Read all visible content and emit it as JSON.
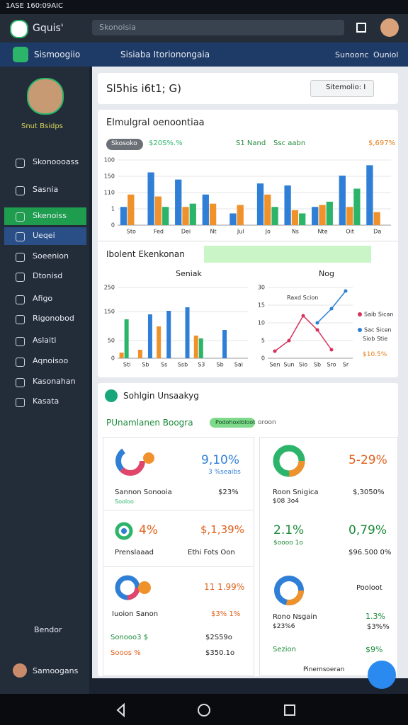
{
  "status": {
    "time": "1ASE 160:09AIC"
  },
  "topbar": {
    "app_name": "Gquis'",
    "search": "Skonoisia"
  },
  "navbar": {
    "brand": "Sismoogiio",
    "title": "Sisiaba Itorionongaia",
    "links": [
      "Sunoonc",
      "Ouniol"
    ]
  },
  "sidebar": {
    "profile": "Snut Bsidps",
    "menu": [
      "Skonoooass",
      "Sasnia",
      "Skenoiss",
      "Ueqei",
      "Soeenion",
      "Dtonisd",
      "Afigo",
      "Rigonobod",
      "Aslaiti",
      "Aqnoisoo",
      "Kasonahan",
      "Kasata"
    ],
    "footer": "Bendor",
    "user": "Samoogans"
  },
  "header": {
    "title": "Sl5his i6t1; G)",
    "dropdown": "Sitemolio: I"
  },
  "overview": {
    "title": "Elmulgral oenoontiaa",
    "chips": [
      "Skosoko",
      "$20S%.%",
      "S1 Nand",
      "Ssc aabn",
      "$,697%"
    ]
  },
  "insights": {
    "title": "Ibolent Ekenkonan",
    "left_title": "Seniak",
    "right_title": "Nog",
    "legend_top": "Raxd Scion",
    "legend_extra": [
      "Siob Stie",
      "$10.5%"
    ]
  },
  "summary": {
    "title": "Sohlgin Unsaakyg",
    "subtitle": "PUnamlanen Boogra",
    "chip": "Podohoxibloot",
    "chip_note": "oroon",
    "kpi0": {
      "value": "9,10%",
      "value_sub": "3 %seaibs",
      "label": "Sannon Sonooia",
      "amount": "$23%",
      "note": "Sooloo"
    },
    "kpi1": {
      "value": "5-29%",
      "label": "Roon Snigica",
      "amount": "$,3050%",
      "note": "$08 3o4"
    },
    "kpi2": {
      "value": "4%",
      "value2": "$,1,39%",
      "label": "Prenslaaad",
      "amount": "Ethi Fots Oon"
    },
    "kpi3": {
      "value": "2.1%",
      "value2": "0,79%",
      "label": "$oooo 1o",
      "amount": "$96.500 0%"
    },
    "kpi4": {
      "value": "11 1.99%",
      "label": "Iuoion Sanon",
      "amount": "$3% 1%",
      "row1": [
        "Sonooo3 $",
        "$2S59o"
      ],
      "row2": [
        "Sooos %",
        "$350.1o"
      ]
    },
    "kpi5": {
      "title": "Pooloot",
      "label": "Rono Nsgain",
      "amount": "1.3%",
      "note": "$23%6",
      "amount2": "$3%%",
      "label2": "Sezion",
      "amount3": "$9%",
      "footer": "Pinemsoeran"
    }
  },
  "chart_data": [
    {
      "type": "bar",
      "categories": [
        "Sto",
        "Fed",
        "Dei",
        "Nt",
        "Jul",
        "Jo",
        "Ns",
        "Nte",
        "Oit",
        "Da"
      ],
      "series": [
        {
          "color": "#2f7fd6",
          "values": [
            28,
            81,
            70,
            47,
            18,
            64,
            61,
            28,
            76,
            92
          ]
        },
        {
          "color": "#f0922b",
          "values": [
            47,
            44,
            28,
            33,
            31,
            47,
            23,
            31,
            28,
            20
          ]
        },
        {
          "color": "#2cb56a",
          "values": [
            null,
            28,
            33,
            null,
            null,
            28,
            18,
            36,
            56,
            null
          ]
        }
      ],
      "ylim": [
        0,
        100
      ],
      "yticks": [
        0,
        {
          "value": 25,
          "label": "1"
        },
        {
          "value": 50,
          "label": "110"
        },
        {
          "value": 75,
          "label": "150"
        },
        100
      ],
      "grid": true
    },
    {
      "type": "bar",
      "categories": [
        "Sti",
        "Sb",
        "Ss",
        "Ssb",
        "S3",
        "Sb",
        "Sai"
      ],
      "series": [
        {
          "color": "#f0922b",
          "values": [
            8,
            12,
            45,
            null,
            32,
            null,
            null
          ]
        },
        {
          "color": "#2cb56a",
          "values": [
            55,
            null,
            null,
            null,
            28,
            null,
            null
          ]
        },
        {
          "color": "#2f7fd6",
          "values": [
            null,
            62,
            67,
            72,
            null,
            40,
            null
          ]
        }
      ],
      "ylim": [
        0,
        100
      ],
      "yticks": [
        0,
        {
          "value": 25,
          "label": "50"
        },
        {
          "value": 66,
          "label": "150"
        },
        {
          "value": 100,
          "label": "250"
        }
      ],
      "grid": true
    },
    {
      "type": "line",
      "categories": [
        "Sen",
        "Sun",
        "Sio",
        "Sb",
        "Sro",
        "Sr"
      ],
      "series": [
        {
          "name": "Saib Sican",
          "color": "#d6315b",
          "values": [
            10,
            25,
            60,
            40,
            12,
            null
          ]
        },
        {
          "name": "Sac Sicen",
          "color": "#2a7fd4",
          "values": [
            null,
            null,
            null,
            50,
            70,
            95
          ]
        }
      ],
      "ylim": [
        0,
        100
      ],
      "yticks": [
        0,
        {
          "value": 25,
          "label": "5"
        },
        {
          "value": 50,
          "label": "10"
        },
        {
          "value": 75,
          "label": "15"
        },
        {
          "value": 100,
          "label": "30"
        }
      ],
      "grid": true
    }
  ]
}
